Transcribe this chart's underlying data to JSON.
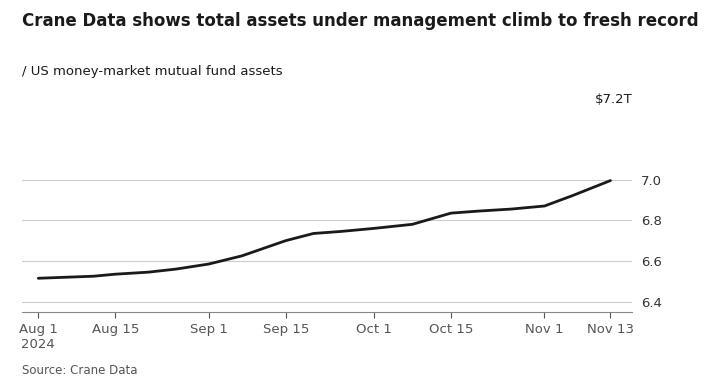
{
  "title": "Crane Data shows total assets under management climb to fresh record",
  "subtitle": "/ US money-market mutual fund assets",
  "source": "Source: Crane Data",
  "ylabel_top": "$7.2T",
  "background_color": "#ffffff",
  "line_color": "#1a1a1a",
  "line_width": 2.0,
  "x_labels": [
    "Aug 1\n2024",
    "Aug 15",
    "Sep 1",
    "Sep 15",
    "Oct 1",
    "Oct 15",
    "Nov 1",
    "Nov 13"
  ],
  "x_tick_positions": [
    0,
    14,
    31,
    45,
    61,
    75,
    92,
    104
  ],
  "yticks": [
    6.4,
    6.6,
    6.8,
    7.0
  ],
  "ylim": [
    6.35,
    7.22
  ],
  "grid_color": "#cccccc",
  "data_x": [
    0,
    5,
    10,
    14,
    20,
    25,
    31,
    37,
    45,
    50,
    55,
    61,
    68,
    75,
    80,
    86,
    92,
    97,
    104
  ],
  "data_y": [
    6.515,
    6.52,
    6.525,
    6.535,
    6.545,
    6.56,
    6.585,
    6.625,
    6.7,
    6.735,
    6.745,
    6.76,
    6.78,
    6.835,
    6.845,
    6.855,
    6.87,
    6.92,
    6.995
  ],
  "title_fontsize": 12,
  "subtitle_fontsize": 9.5,
  "tick_fontsize": 9.5,
  "source_fontsize": 8.5
}
